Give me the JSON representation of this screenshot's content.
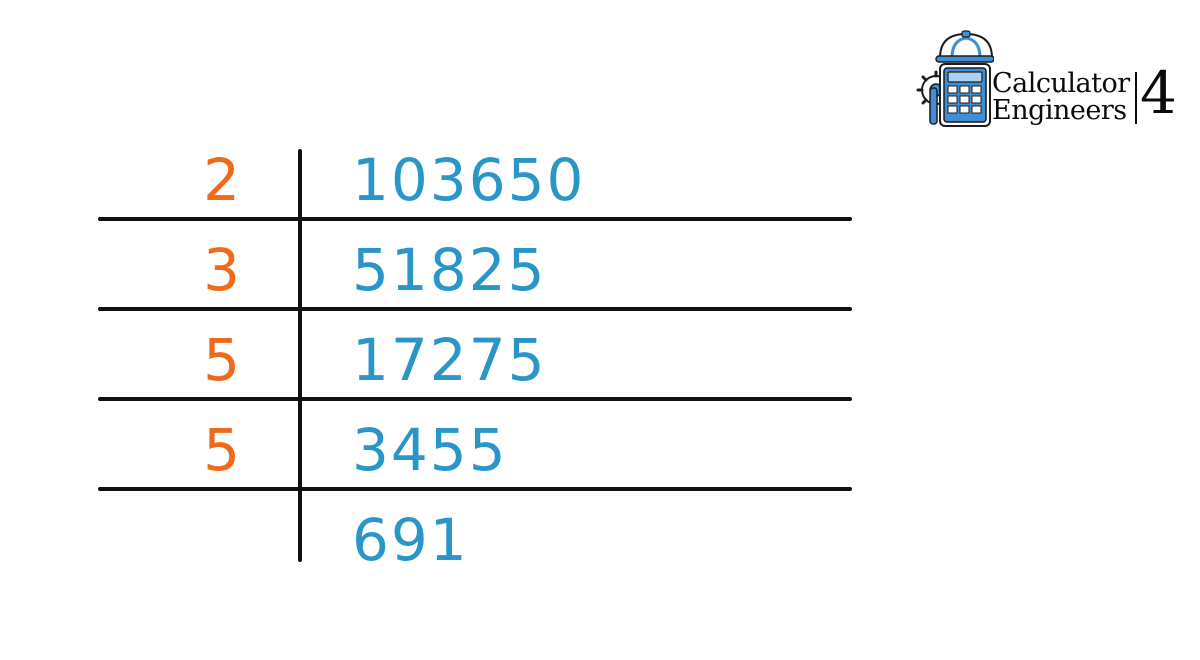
{
  "logo": {
    "line1": "Calculator",
    "line2": "Engineers",
    "number": "4",
    "icon_name": "calculator-hardhat-icon",
    "colors": {
      "blue": "#3f8fd6",
      "light_blue": "#a9d2f3",
      "outline": "#1d1d1d"
    }
  },
  "factor_ladder": {
    "colors": {
      "divisor": "#f06a1c",
      "quotient": "#2a96c8",
      "rule": "#111111"
    },
    "rows": [
      {
        "divisor": "2",
        "number": "103650"
      },
      {
        "divisor": "3",
        "number": "51825"
      },
      {
        "divisor": "5",
        "number": "17275"
      },
      {
        "divisor": "5",
        "number": "3455"
      },
      {
        "divisor": "",
        "number": "691"
      }
    ]
  }
}
